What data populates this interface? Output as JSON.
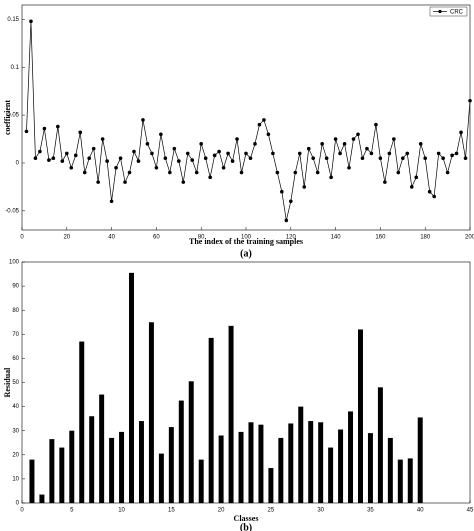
{
  "chart_data": [
    {
      "type": "line",
      "xlabel": "The index of the training samples",
      "ylabel": "coefficient",
      "caption": "(a)",
      "x": [
        2,
        4,
        6,
        8,
        10,
        12,
        14,
        16,
        18,
        20,
        22,
        24,
        26,
        28,
        30,
        32,
        34,
        36,
        38,
        40,
        42,
        44,
        46,
        48,
        50,
        52,
        54,
        56,
        58,
        60,
        62,
        64,
        66,
        68,
        70,
        72,
        74,
        76,
        78,
        80,
        82,
        84,
        86,
        88,
        90,
        92,
        94,
        96,
        98,
        100,
        102,
        104,
        106,
        108,
        110,
        112,
        114,
        116,
        118,
        120,
        122,
        124,
        126,
        128,
        130,
        132,
        134,
        136,
        138,
        140,
        142,
        144,
        146,
        148,
        150,
        152,
        154,
        156,
        158,
        160,
        162,
        164,
        166,
        168,
        170,
        172,
        174,
        176,
        178,
        180,
        182,
        184,
        186,
        188,
        190,
        192,
        194,
        196,
        198,
        200
      ],
      "series": [
        {
          "name": "CRC",
          "color": "#000000",
          "values": [
            0.033,
            0.148,
            0.005,
            0.012,
            0.036,
            0.003,
            0.005,
            0.038,
            0.002,
            0.01,
            -0.005,
            0.008,
            0.032,
            -0.01,
            0.005,
            0.015,
            -0.02,
            0.025,
            0.002,
            -0.04,
            -0.005,
            0.005,
            -0.02,
            -0.01,
            0.012,
            0.002,
            0.045,
            0.02,
            0.01,
            -0.005,
            0.03,
            0.005,
            -0.01,
            0.015,
            0.002,
            -0.02,
            0.01,
            0.003,
            -0.01,
            0.02,
            0.005,
            -0.015,
            0.008,
            0.012,
            -0.005,
            0.01,
            0.002,
            0.025,
            -0.01,
            0.01,
            0.005,
            0.02,
            0.04,
            0.045,
            0.03,
            0.01,
            -0.01,
            -0.03,
            -0.06,
            -0.04,
            -0.01,
            0.01,
            -0.025,
            0.015,
            0.005,
            -0.01,
            0.02,
            0.005,
            -0.015,
            0.025,
            0.01,
            0.02,
            -0.005,
            0.025,
            0.03,
            0.005,
            0.015,
            0.01,
            0.04,
            0.005,
            -0.02,
            0.01,
            0.025,
            -0.01,
            0.005,
            0.01,
            -0.025,
            -0.015,
            0.02,
            0.005,
            -0.03,
            -0.035,
            0.01,
            0.005,
            -0.01,
            0.008,
            0.01,
            0.032,
            0.005,
            0.065
          ]
        }
      ],
      "xlim": [
        0,
        200
      ],
      "xticks": [
        0,
        20,
        40,
        60,
        80,
        100,
        120,
        140,
        160,
        180,
        200
      ],
      "ylim": [
        -0.07,
        0.165
      ],
      "yticks": [
        -0.05,
        0,
        0.05,
        0.1,
        0.15
      ],
      "legend": "northeast"
    },
    {
      "type": "bar",
      "xlabel": "Classes",
      "ylabel": "Residual",
      "caption": "(b)",
      "color": "#000000",
      "x": [
        1,
        2,
        3,
        4,
        5,
        6,
        7,
        8,
        9,
        10,
        11,
        12,
        13,
        14,
        15,
        16,
        17,
        18,
        19,
        20,
        21,
        22,
        23,
        24,
        25,
        26,
        27,
        28,
        29,
        30,
        31,
        32,
        33,
        34,
        35,
        36,
        37,
        38,
        39,
        40
      ],
      "values": [
        18,
        3.5,
        26.5,
        23,
        30,
        67,
        36,
        45,
        27,
        29.5,
        95.5,
        34,
        75,
        20.5,
        31.5,
        42.5,
        50.5,
        18,
        68.5,
        28,
        73.5,
        29.5,
        33.5,
        32.5,
        14.5,
        27,
        33,
        40,
        34,
        33.5,
        23,
        30.5,
        38,
        72,
        29,
        48,
        27,
        18,
        18.5,
        35.5
      ],
      "xlim": [
        0,
        45
      ],
      "xticks": [
        0,
        5,
        10,
        15,
        20,
        25,
        30,
        35,
        40,
        45
      ],
      "ylim": [
        0,
        100
      ],
      "yticks": [
        0,
        10,
        20,
        30,
        40,
        50,
        60,
        70,
        80,
        90,
        100
      ]
    }
  ]
}
